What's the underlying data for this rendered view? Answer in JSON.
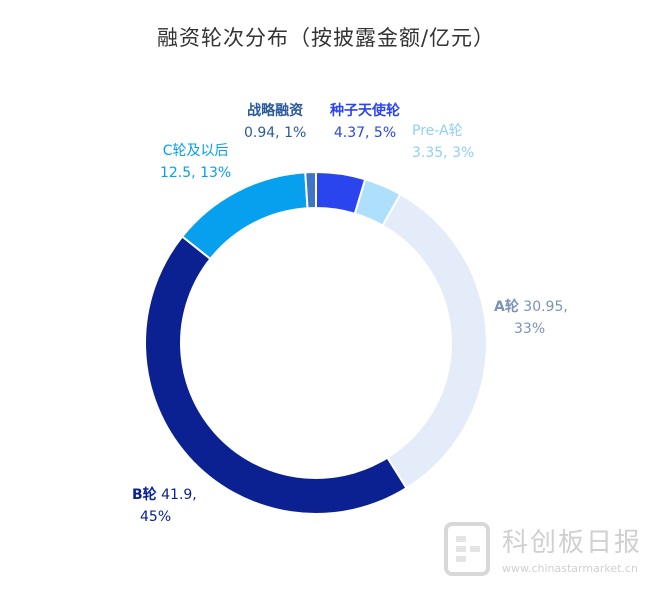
{
  "chart_data": {
    "type": "pie",
    "style": "donut",
    "title": "融资轮次分布（按披露金额/亿元）",
    "slices": [
      {
        "name": "种子天使轮",
        "value": 4.37,
        "percent": "5%",
        "color": "#2a45ee",
        "label_value": "4.37, 5%"
      },
      {
        "name": "Pre-A轮",
        "value": 3.35,
        "percent": "3%",
        "color": "#aee0fb",
        "label_value": "3.35, 3%"
      },
      {
        "name": "A轮",
        "value": 30.95,
        "percent": "33%",
        "color": "#e3ecf8",
        "label_value": "30.95,",
        "label_value2": "33%"
      },
      {
        "name": "B轮",
        "value": 41.9,
        "percent": "45%",
        "color": "#0c2191",
        "label_value": "41.9,",
        "label_value2": "45%"
      },
      {
        "name": "C轮及以后",
        "value": 12.5,
        "percent": "13%",
        "color": "#06a0ee",
        "label_value": "12.5, 13%"
      },
      {
        "name": "战略融资",
        "value": 0.94,
        "percent": "1%",
        "color": "#3f74c7",
        "label_value": "0.94, 1%"
      }
    ],
    "label_colors": {
      "种子天使轮": "#2a45ee",
      "Pre-A轮": "#8fd0f5",
      "A轮": "#7b93b5",
      "B轮": "#0c2191",
      "C轮及以后": "#06a0ee",
      "战略融资": "#2b5a9e"
    }
  },
  "watermark": {
    "name": "科创板日报",
    "url": "www.chinastarmarket.cn"
  }
}
